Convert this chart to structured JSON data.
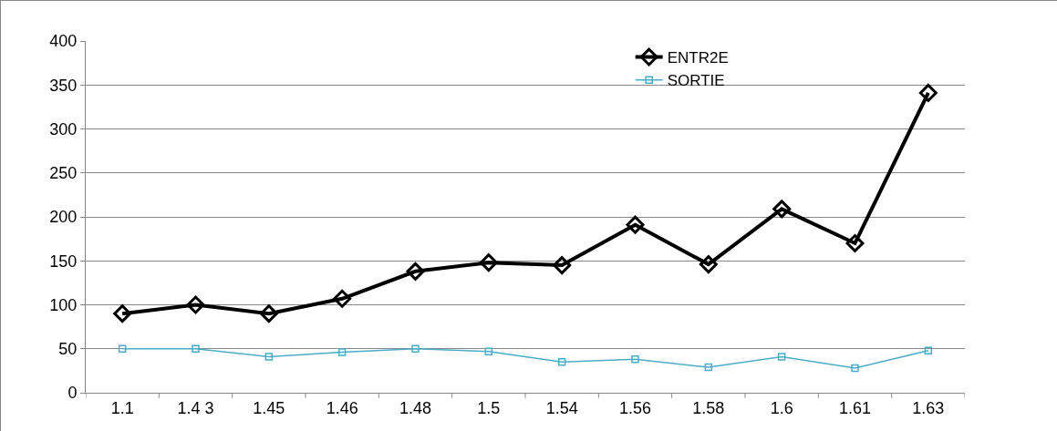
{
  "chart_data": {
    "type": "line",
    "categories": [
      "1.1",
      "1.4 3",
      "1.45",
      "1.46",
      "1.48",
      "1.5",
      "1.54",
      "1.56",
      "1.58",
      "1.6",
      "1.61",
      "1.63"
    ],
    "series": [
      {
        "name": "ENTR2E",
        "color": "#000000",
        "marker": "diamond",
        "values": [
          90,
          100,
          90,
          107,
          138,
          148,
          145,
          191,
          146,
          209,
          170,
          341
        ]
      },
      {
        "name": "SORTIE",
        "color": "#4bacc6",
        "marker": "square",
        "values": [
          50,
          50,
          41,
          46,
          50,
          47,
          35,
          38,
          29,
          41,
          28,
          48
        ]
      }
    ],
    "ylim": [
      0,
      400
    ],
    "yticks": [
      0,
      50,
      100,
      150,
      200,
      250,
      300,
      350,
      400
    ],
    "grid": "y",
    "legend": "top right"
  }
}
